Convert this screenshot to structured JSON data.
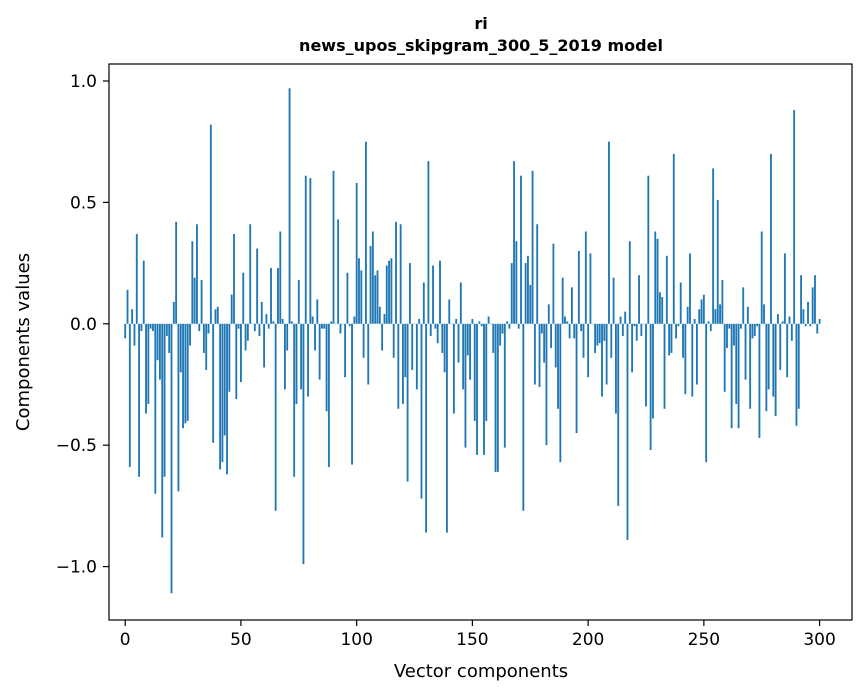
{
  "chart_data": {
    "type": "bar",
    "title": "ri",
    "subtitle": "news_upos_skipgram_300_5_2019 model",
    "xlabel": "Vector components",
    "ylabel": "Components values",
    "xlim": [
      -7,
      314
    ],
    "ylim": [
      -1.22,
      1.07
    ],
    "xticks": [
      0,
      50,
      100,
      150,
      200,
      250,
      300
    ],
    "xtick_labels": [
      "0",
      "50",
      "100",
      "150",
      "200",
      "250",
      "300"
    ],
    "yticks": [
      -1.0,
      -0.5,
      0.0,
      0.5,
      1.0
    ],
    "ytick_labels": [
      "−1.0",
      "−0.5",
      "0.0",
      "0.5",
      "1.0"
    ],
    "bar_color": "#1f77b4",
    "grid": false,
    "values": [
      -0.06,
      0.14,
      -0.59,
      0.06,
      -0.09,
      0.37,
      -0.63,
      -0.03,
      0.26,
      -0.37,
      -0.33,
      -0.02,
      -0.03,
      -0.7,
      -0.15,
      -0.23,
      -0.88,
      -0.63,
      -0.05,
      -0.12,
      -1.11,
      0.09,
      0.42,
      -0.69,
      -0.2,
      -0.43,
      -0.41,
      -0.4,
      -0.09,
      0.34,
      0.19,
      0.41,
      -0.03,
      0.18,
      -0.12,
      -0.19,
      -0.04,
      0.82,
      -0.49,
      0.06,
      0.07,
      -0.6,
      -0.57,
      -0.46,
      -0.62,
      -0.28,
      0.12,
      0.37,
      -0.31,
      -0.02,
      -0.24,
      0.21,
      -0.11,
      -0.07,
      0.41,
      0.0,
      -0.03,
      0.31,
      -0.05,
      0.09,
      -0.18,
      0.04,
      -0.02,
      0.23,
      0.01,
      -0.77,
      0.23,
      0.38,
      0.02,
      -0.27,
      -0.11,
      0.97,
      0.01,
      -0.63,
      -0.33,
      0.18,
      -0.27,
      -0.99,
      0.61,
      -0.3,
      0.6,
      0.03,
      -0.11,
      0.1,
      -0.23,
      -0.02,
      -0.02,
      -0.36,
      -0.59,
      0.01,
      0.63,
      0.0,
      0.43,
      -0.04,
      0.0,
      -0.22,
      0.21,
      -0.01,
      -0.58,
      0.03,
      0.58,
      0.27,
      0.22,
      -0.14,
      0.75,
      -0.25,
      0.32,
      0.38,
      0.2,
      0.22,
      0.07,
      -0.11,
      0.04,
      0.24,
      0.26,
      0.27,
      -0.14,
      0.42,
      -0.35,
      0.41,
      -0.33,
      -0.22,
      -0.65,
      0.25,
      -0.19,
      0.0,
      -0.27,
      0.02,
      -0.72,
      0.17,
      -0.86,
      0.67,
      -0.05,
      0.24,
      -0.02,
      -0.08,
      0.26,
      -0.12,
      -0.2,
      -0.86,
      0.1,
      0.0,
      -0.37,
      0.02,
      -0.16,
      0.17,
      -0.27,
      -0.51,
      -0.13,
      -0.23,
      0.02,
      -0.4,
      -0.54,
      0.01,
      -0.01,
      -0.54,
      -0.4,
      0.03,
      0.0,
      -0.12,
      -0.61,
      -0.61,
      -0.09,
      -0.04,
      -0.51,
      0.01,
      -0.02,
      0.25,
      0.67,
      0.34,
      -0.02,
      0.61,
      -0.77,
      0.25,
      0.28,
      0.16,
      0.63,
      -0.25,
      0.41,
      -0.26,
      -0.04,
      -0.16,
      -0.5,
      0.08,
      -0.1,
      0.33,
      -0.18,
      -0.35,
      -0.57,
      0.19,
      0.03,
      0.01,
      -0.06,
      0.15,
      -0.06,
      -0.45,
      0.3,
      -0.03,
      -0.14,
      0.38,
      -0.22,
      0.29,
      0.0,
      -0.12,
      -0.09,
      -0.08,
      -0.3,
      -0.07,
      -0.25,
      0.75,
      -0.14,
      0.19,
      -0.37,
      -0.75,
      0.03,
      -0.05,
      0.05,
      -0.89,
      0.34,
      -0.2,
      -0.01,
      -0.07,
      0.2,
      -0.05,
      0.0,
      -0.34,
      0.61,
      -0.52,
      -0.39,
      0.38,
      0.35,
      0.13,
      0.11,
      -0.35,
      0.28,
      -0.13,
      -0.12,
      0.7,
      -0.06,
      -0.01,
      0.17,
      -0.14,
      -0.29,
      0.07,
      0.29,
      -0.3,
      0.02,
      -0.25,
      0.06,
      0.1,
      0.12,
      -0.57,
      0.01,
      -0.03,
      0.64,
      0.06,
      0.51,
      0.08,
      0.18,
      -0.28,
      -0.1,
      -0.02,
      -0.43,
      -0.09,
      -0.33,
      -0.43,
      -0.02,
      0.15,
      -0.23,
      0.07,
      -0.35,
      -0.06,
      -0.05,
      -0.01,
      -0.47,
      0.38,
      0.08,
      -0.36,
      -0.27,
      0.7,
      -0.3,
      -0.38,
      0.04,
      -0.19,
      0.01,
      0.29,
      -0.22,
      0.03,
      -0.07,
      0.88,
      -0.42,
      -0.35,
      0.2,
      0.06,
      -0.01,
      0.09,
      -0.01,
      0.15,
      0.2,
      -0.04,
      0.02
    ]
  }
}
